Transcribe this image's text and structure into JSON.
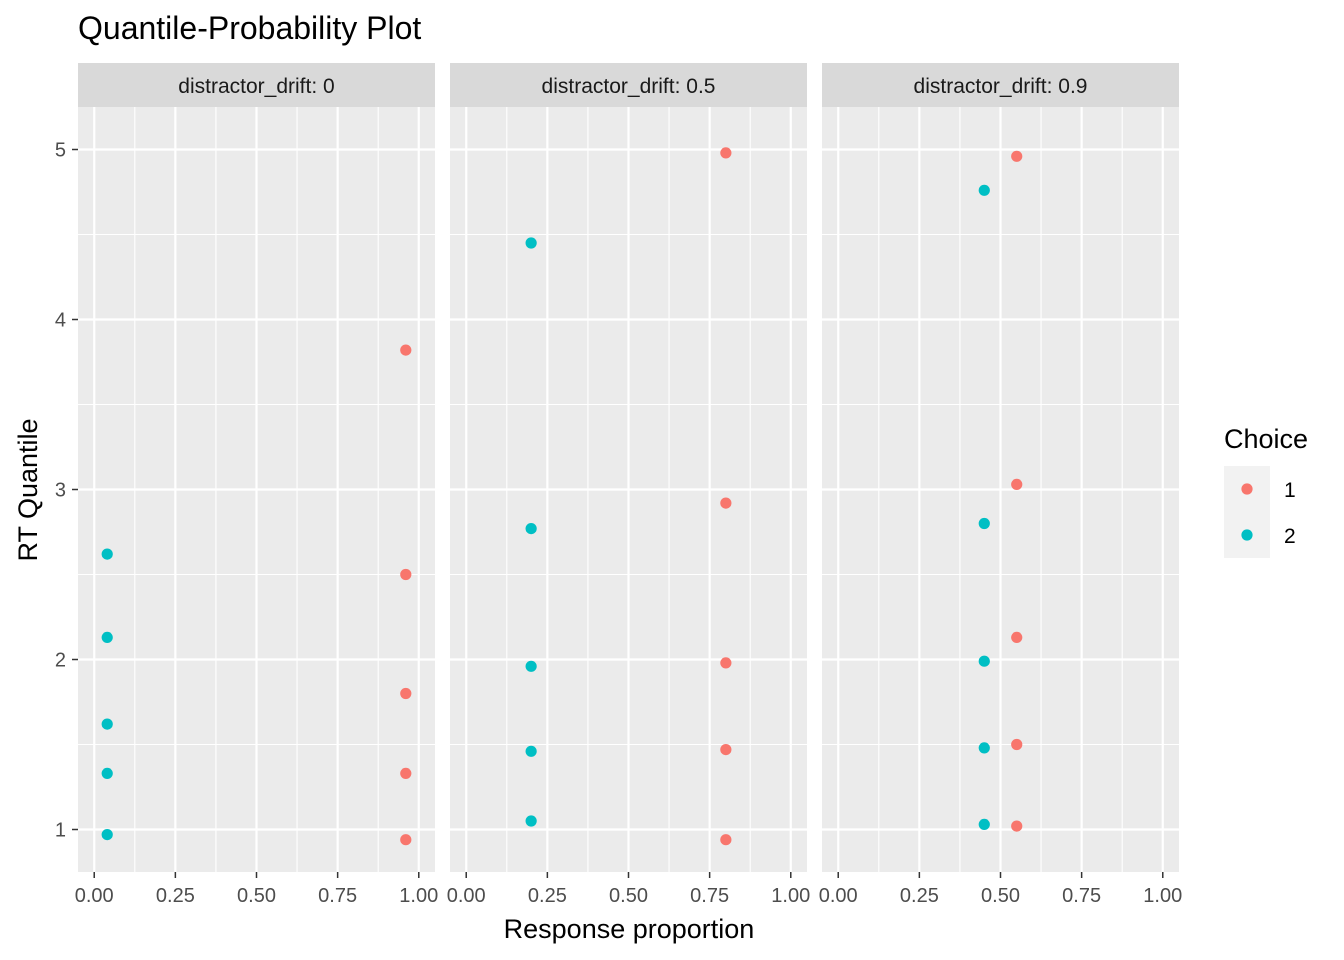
{
  "chart_data": {
    "type": "scatter",
    "title": "Quantile-Probability Plot",
    "xlabel": "Response proportion",
    "ylabel": "RT Quantile",
    "xlim": [
      -0.05,
      1.05
    ],
    "ylim": [
      0.75,
      5.25
    ],
    "x_ticks": [
      0,
      0.25,
      0.5,
      0.75,
      1
    ],
    "x_tick_labels": [
      "0.00",
      "0.25",
      "0.50",
      "0.75",
      "1.00"
    ],
    "y_ticks": [
      1,
      2,
      3,
      4,
      5
    ],
    "y_tick_labels": [
      "1",
      "2",
      "3",
      "4",
      "5"
    ],
    "grid": true,
    "legend": {
      "title": "Choice",
      "position": "right",
      "entries": [
        {
          "label": "1",
          "color": "#F8766D"
        },
        {
          "label": "2",
          "color": "#00BFC4"
        }
      ]
    },
    "panels": [
      {
        "label": "distractor_drift: 0",
        "series": [
          {
            "name": "1",
            "color": "#F8766D",
            "points": [
              [
                0.96,
                0.94
              ],
              [
                0.96,
                1.33
              ],
              [
                0.96,
                1.8
              ],
              [
                0.96,
                2.5
              ],
              [
                0.96,
                3.82
              ]
            ]
          },
          {
            "name": "2",
            "color": "#00BFC4",
            "points": [
              [
                0.04,
                0.97
              ],
              [
                0.04,
                1.33
              ],
              [
                0.04,
                1.62
              ],
              [
                0.04,
                2.13
              ],
              [
                0.04,
                2.62
              ]
            ]
          }
        ]
      },
      {
        "label": "distractor_drift: 0.5",
        "series": [
          {
            "name": "1",
            "color": "#F8766D",
            "points": [
              [
                0.8,
                0.94
              ],
              [
                0.8,
                1.47
              ],
              [
                0.8,
                1.98
              ],
              [
                0.8,
                2.92
              ],
              [
                0.8,
                4.98
              ]
            ]
          },
          {
            "name": "2",
            "color": "#00BFC4",
            "points": [
              [
                0.2,
                1.05
              ],
              [
                0.2,
                1.46
              ],
              [
                0.2,
                1.96
              ],
              [
                0.2,
                2.77
              ],
              [
                0.2,
                4.45
              ]
            ]
          }
        ]
      },
      {
        "label": "distractor_drift: 0.9",
        "series": [
          {
            "name": "1",
            "color": "#F8766D",
            "points": [
              [
                0.55,
                1.02
              ],
              [
                0.55,
                1.5
              ],
              [
                0.55,
                2.13
              ],
              [
                0.55,
                3.03
              ],
              [
                0.55,
                4.96
              ]
            ]
          },
          {
            "name": "2",
            "color": "#00BFC4",
            "points": [
              [
                0.45,
                1.03
              ],
              [
                0.45,
                1.48
              ],
              [
                0.45,
                1.99
              ],
              [
                0.45,
                2.8
              ],
              [
                0.45,
                4.76
              ]
            ]
          }
        ]
      }
    ]
  }
}
